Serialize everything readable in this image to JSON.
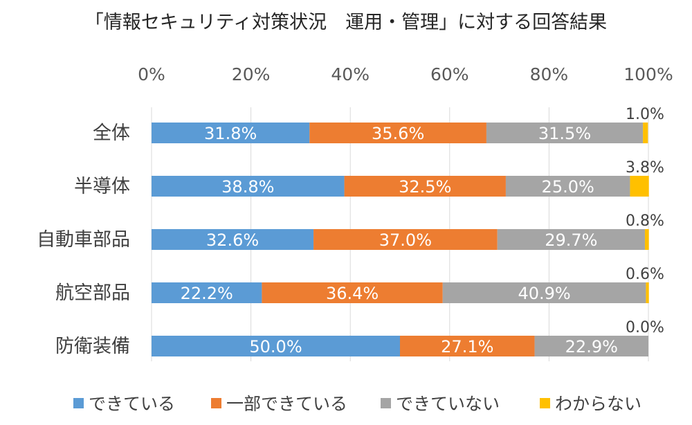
{
  "chart_data": {
    "type": "bar",
    "orientation": "horizontal",
    "stacked": "percent",
    "title": "「情報セキュリティ対策状況　運用・管理」に対する回答結果",
    "categories": [
      "全体",
      "半導体",
      "自動車部品",
      "航空部品",
      "防衛装備"
    ],
    "series": [
      {
        "name": "できている",
        "color": "#5b9bd5",
        "values": [
          31.8,
          38.8,
          32.6,
          22.2,
          50.0
        ]
      },
      {
        "name": "一部できている",
        "color": "#ed7d31",
        "values": [
          35.6,
          32.5,
          37.0,
          36.4,
          27.1
        ]
      },
      {
        "name": "できていない",
        "color": "#a5a5a5",
        "values": [
          31.5,
          25.0,
          29.7,
          40.9,
          22.9
        ]
      },
      {
        "name": "わからない",
        "color": "#ffc000",
        "values": [
          1.0,
          3.8,
          0.8,
          0.6,
          0.0
        ]
      }
    ],
    "xlim": [
      0,
      100
    ],
    "xticks": [
      "0%",
      "20%",
      "40%",
      "60%",
      "80%",
      "100%"
    ],
    "legend_position": "bottom",
    "grid": true
  }
}
